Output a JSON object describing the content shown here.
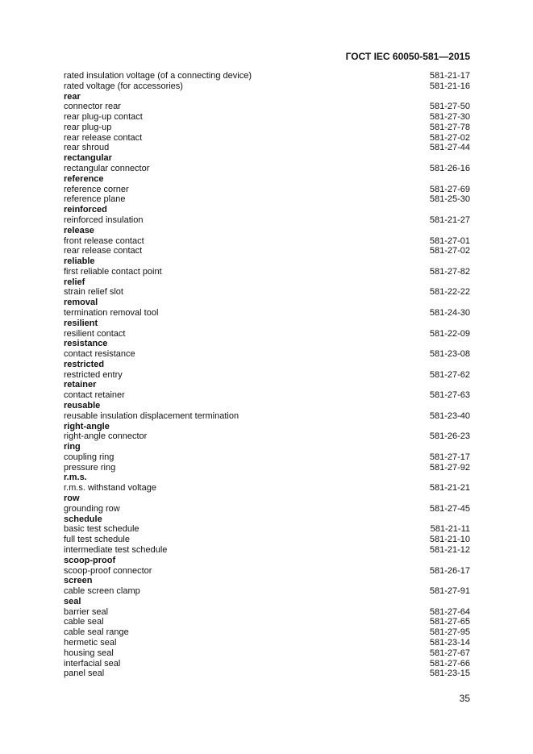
{
  "header": {
    "title": "ГОСТ IEC 60050-581—2015"
  },
  "entries": [
    {
      "term": "rated insulation voltage (of a connecting device)",
      "code": "581-21-17"
    },
    {
      "term": "rated voltage (for accessories)",
      "code": "581-21-16"
    },
    {
      "heading": "rear"
    },
    {
      "term": "connector rear",
      "code": "581-27-50"
    },
    {
      "term": "rear plug-up contact",
      "code": "581-27-30"
    },
    {
      "term": "rear plug-up",
      "code": "581-27-78"
    },
    {
      "term": "rear release contact",
      "code": "581-27-02"
    },
    {
      "term": "rear shroud",
      "code": "581-27-44"
    },
    {
      "heading": "rectangular"
    },
    {
      "term": "rectangular connector",
      "code": "581-26-16"
    },
    {
      "heading": "reference"
    },
    {
      "term": "reference corner",
      "code": "581-27-69"
    },
    {
      "term": "reference plane",
      "code": "581-25-30"
    },
    {
      "heading": "reinforced"
    },
    {
      "term": "reinforced insulation",
      "code": "581-21-27"
    },
    {
      "heading": "release"
    },
    {
      "term": "front release contact",
      "code": "581-27-01"
    },
    {
      "term": "rear release contact",
      "code": "581-27-02"
    },
    {
      "heading": "reliable"
    },
    {
      "term": "first reliable contact point",
      "code": "581-27-82"
    },
    {
      "heading": "relief"
    },
    {
      "term": "strain relief slot",
      "code": "581-22-22"
    },
    {
      "heading": "removal"
    },
    {
      "term": "termination removal tool",
      "code": "581-24-30"
    },
    {
      "heading": "resilient"
    },
    {
      "term": "resilient contact",
      "code": "581-22-09"
    },
    {
      "heading": "resistance"
    },
    {
      "term": "contact resistance",
      "code": "581-23-08"
    },
    {
      "heading": "restricted"
    },
    {
      "term": "restricted entry",
      "code": "581-27-62"
    },
    {
      "heading": "retainer"
    },
    {
      "term": "contact retainer",
      "code": "581-27-63"
    },
    {
      "heading": "reusable"
    },
    {
      "term": "reusable insulation displacement termination",
      "code": "581-23-40"
    },
    {
      "heading": "right-angle"
    },
    {
      "term": "right-angle connector",
      "code": "581-26-23"
    },
    {
      "heading": "ring"
    },
    {
      "term": "coupling ring",
      "code": "581-27-17"
    },
    {
      "term": "pressure ring",
      "code": "581-27-92"
    },
    {
      "heading": "r.m.s."
    },
    {
      "term": "r.m.s. withstand voltage",
      "code": "581-21-21"
    },
    {
      "heading": "row"
    },
    {
      "term": "grounding row",
      "code": "581-27-45"
    },
    {
      "heading": "schedule"
    },
    {
      "term": "basic test schedule",
      "code": "581-21-11"
    },
    {
      "term": "full test schedule",
      "code": "581-21-10"
    },
    {
      "term": "intermediate test schedule",
      "code": "581-21-12"
    },
    {
      "heading": "scoop-proof"
    },
    {
      "term": "scoop-proof connector",
      "code": "581-26-17"
    },
    {
      "heading": "screen"
    },
    {
      "term": "cable screen clamp",
      "code": "581-27-91"
    },
    {
      "heading": "seal"
    },
    {
      "term": "barrier seal",
      "code": "581-27-64"
    },
    {
      "term": "cable seal",
      "code": "581-27-65"
    },
    {
      "term": "cable seal range",
      "code": "581-27-95"
    },
    {
      "term": "hermetic seal",
      "code": "581-23-14"
    },
    {
      "term": "housing seal",
      "code": "581-27-67"
    },
    {
      "term": "interfacial seal",
      "code": "581-27-66"
    },
    {
      "term": "panel seal",
      "code": "581-23-15"
    }
  ],
  "footer": {
    "page_number": "35"
  }
}
